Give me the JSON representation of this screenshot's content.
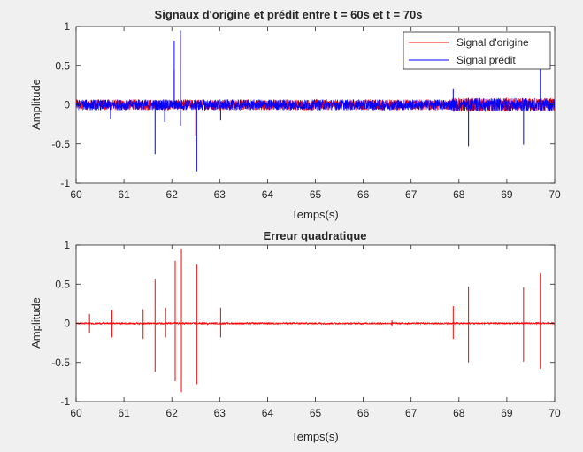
{
  "figure": {
    "background": "#f0f0f0"
  },
  "chart_data": [
    {
      "type": "line",
      "title": "Signaux d'origine et prédit entre t = 60s et t = 70s",
      "xlabel": "Temps(s)",
      "ylabel": "Amplitude",
      "xlim": [
        60,
        70
      ],
      "ylim": [
        -1,
        1
      ],
      "xticks": [
        "60",
        "61",
        "62",
        "63",
        "64",
        "65",
        "66",
        "67",
        "68",
        "69",
        "70"
      ],
      "yticks": [
        "1",
        "0.5",
        "0",
        "-0.5",
        "-1"
      ],
      "grid": false,
      "legend": {
        "position": "top-right",
        "entries": [
          "Signal d'origine",
          "Signal prédit"
        ]
      },
      "noise_band": 0.07,
      "series": [
        {
          "name": "Signal d'origine",
          "color": "#ff0000",
          "spikes": [
            [
              62.05,
              0.45
            ],
            [
              62.18,
              0.88
            ],
            [
              62.5,
              -0.4
            ]
          ]
        },
        {
          "name": "Signal prédit",
          "color": "#0000ff",
          "spikes": [
            [
              60.72,
              -0.18
            ],
            [
              61.65,
              -0.63
            ],
            [
              61.85,
              -0.22
            ],
            [
              62.05,
              0.82
            ],
            [
              62.18,
              0.95
            ],
            [
              62.18,
              -0.27
            ],
            [
              62.52,
              -0.85
            ],
            [
              63.02,
              -0.2
            ],
            [
              67.88,
              0.2
            ],
            [
              68.2,
              -0.53
            ],
            [
              69.35,
              -0.51
            ],
            [
              69.7,
              0.47
            ]
          ]
        }
      ]
    },
    {
      "type": "line",
      "title": "Erreur quadratique",
      "xlabel": "Temps(s)",
      "ylabel": "Amplitude",
      "xlim": [
        60,
        70
      ],
      "ylim": [
        -1,
        1
      ],
      "xticks": [
        "60",
        "61",
        "62",
        "63",
        "64",
        "65",
        "66",
        "67",
        "68",
        "69",
        "70"
      ],
      "yticks": [
        "1",
        "0.5",
        "0",
        "-0.5",
        "-1"
      ],
      "grid": false,
      "noise_band": 0.012,
      "series": [
        {
          "color": "#ff0000",
          "bursts": [
            [
              60.28,
              0.12,
              -0.12
            ],
            [
              60.75,
              0.17,
              -0.18
            ],
            [
              61.4,
              0.18,
              -0.2
            ],
            [
              61.65,
              0.57,
              -0.62
            ],
            [
              61.87,
              0.2,
              -0.18
            ],
            [
              62.07,
              0.8,
              -0.74
            ],
            [
              62.2,
              0.95,
              -0.88
            ],
            [
              62.52,
              0.75,
              -0.78
            ],
            [
              63.02,
              0.2,
              -0.18
            ],
            [
              66.6,
              0.04,
              -0.04
            ],
            [
              67.88,
              0.22,
              -0.2
            ],
            [
              68.2,
              0.47,
              -0.5
            ],
            [
              69.35,
              0.46,
              -0.49
            ],
            [
              69.7,
              0.64,
              -0.58
            ]
          ]
        }
      ]
    }
  ]
}
